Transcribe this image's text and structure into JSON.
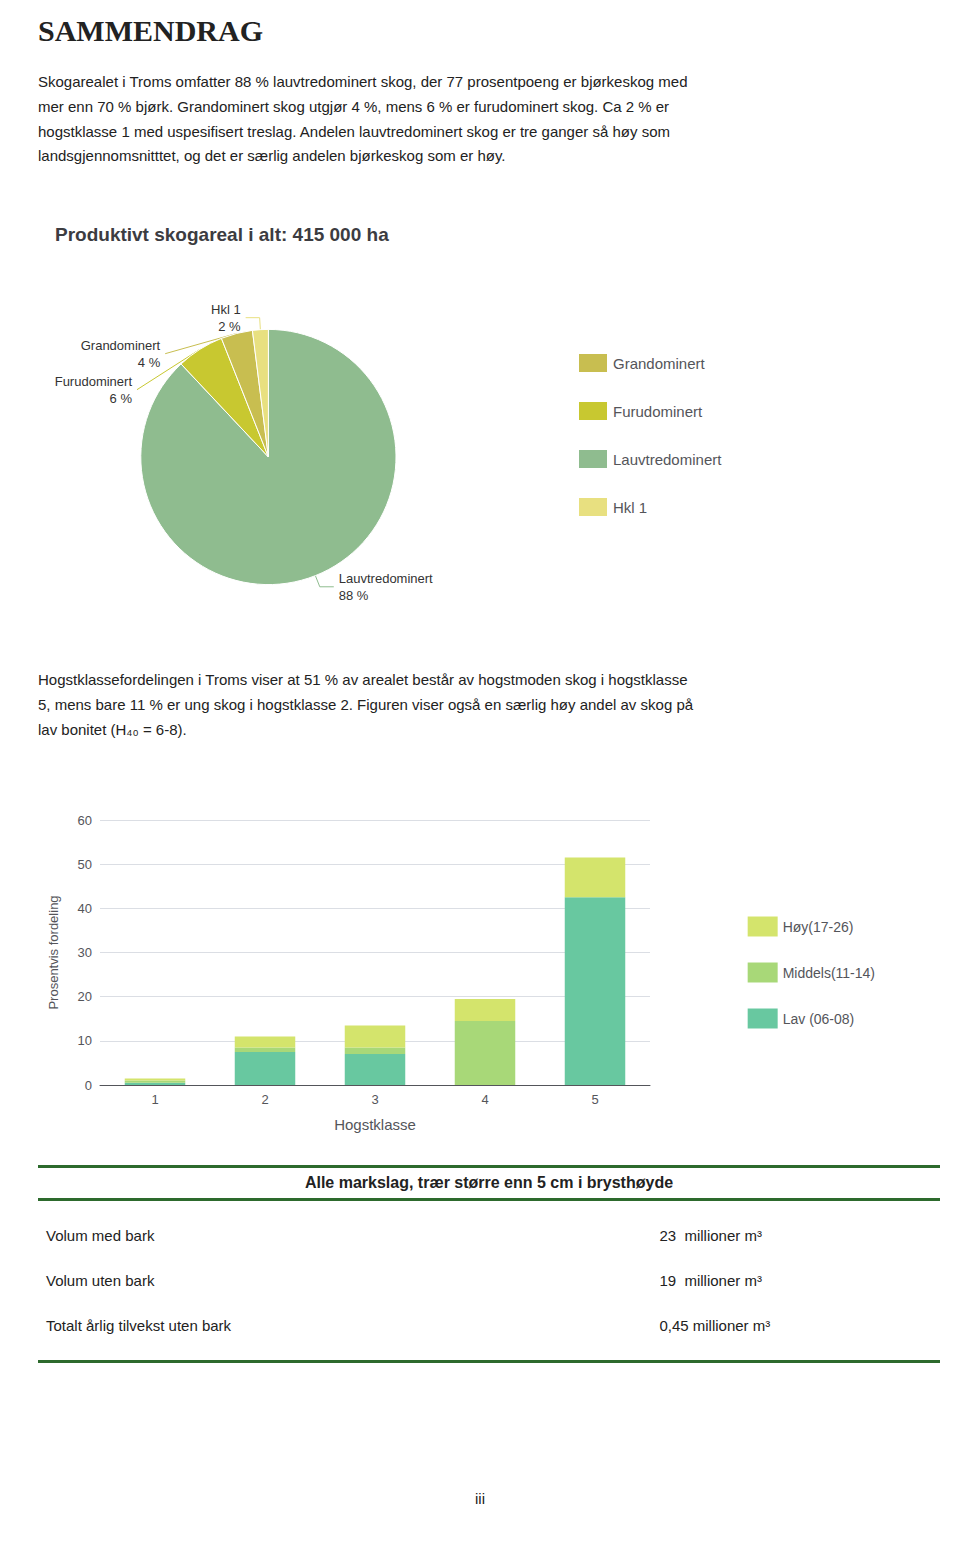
{
  "title": "SAMMENDRAG",
  "body_text": [
    "Skogarealet i Troms omfatter 88 % lauvtredominert skog, der 77 prosentpoeng er bjørkeskog med",
    "mer enn 70 % bjørk. Grandominert skog utgjør 4 %, mens 6 % er furudominert skog. Ca 2 % er",
    "hogstklasse 1 med uspesifisert treslag. Andelen lauvtredominert skog er tre ganger så høy som",
    "landsgjennomsnitttet, og det er særlig andelen bjørkeskog som er høy."
  ],
  "mid_text": [
    "Hogstklassefordelingen i Troms viser at 51 % av arealet består av hogstmoden skog i hogstklasse",
    "5, mens bare 11 % er ung skog i hogstklasse 2. Figuren viser også en særlig høy andel av skog på",
    "lav bonitet (H₄₀ = 6-8)."
  ],
  "chart_data": [
    {
      "type": "pie",
      "title": "Produktivt skogareal i alt: 415 000 ha",
      "categories": [
        "Lauvtredominert",
        "Furudominert",
        "Grandominert",
        "Hkl 1"
      ],
      "values": [
        88,
        6,
        4,
        2
      ],
      "value_labels": [
        "88 %",
        "6 %",
        "4 %",
        "2 %"
      ],
      "colors": [
        "#8FBC8F",
        "#C8C830",
        "#C8BE50",
        "#E8E080"
      ],
      "data_labels": true,
      "legend": "right",
      "legend_entries": [
        "Grandominert",
        "Furudominert",
        "Lauvtredominert",
        "Hkl 1"
      ]
    },
    {
      "type": "bar",
      "stacked": true,
      "categories": [
        1,
        2,
        3,
        4,
        5
      ],
      "x_label": "Hogstklasse",
      "y_label": "Prosentvis fordeling",
      "series": [
        {
          "name": "Lav (06-08)",
          "color": "#68C8A0",
          "values": [
            0.5,
            7.5,
            7.0,
            0.0,
            42.5
          ]
        },
        {
          "name": "Middels(11-14)",
          "color": "#A8D878",
          "values": [
            0.5,
            1.0,
            1.5,
            14.5,
            0.0
          ]
        },
        {
          "name": "Høy(17-26)",
          "color": "#D4E46C",
          "values": [
            0.5,
            2.5,
            5.0,
            5.0,
            9.0
          ]
        }
      ],
      "ylim": [
        0,
        60
      ],
      "yticks": [
        0,
        10,
        20,
        30,
        40,
        50,
        60
      ],
      "grid": true,
      "legend": "right",
      "legend_entries": [
        "Høy(17-26)",
        "Middels(11-14)",
        "Lav (06-08)"
      ]
    }
  ],
  "table": {
    "title": "Alle markslag, trær større enn 5 cm i brysthøyde",
    "border_color": "#2D6A2D",
    "rows": [
      [
        "Volum med bark",
        "23  millioner m³"
      ],
      [
        "Volum uten bark",
        "19  millioner m³"
      ],
      [
        "Totalt årlig tilvekst uten bark",
        "0,45 millioner m³"
      ]
    ]
  },
  "page_number": "iii"
}
